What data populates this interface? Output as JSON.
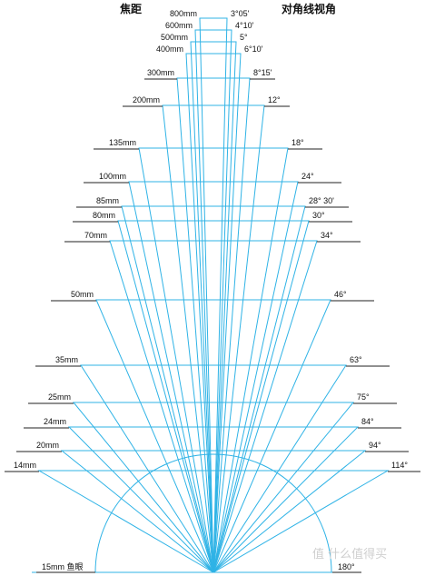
{
  "headers": {
    "focal": "焦距",
    "angle": "对角线视角"
  },
  "colors": {
    "lines": "#2fb3e6",
    "text": "#111111",
    "underline": "#222222",
    "watermark": "#c8c8c8"
  },
  "lenses": [
    {
      "focal": "800mm",
      "angle": "3°05'"
    },
    {
      "focal": "600mm",
      "angle": "4°10'"
    },
    {
      "focal": "500mm",
      "angle": "5°"
    },
    {
      "focal": "400mm",
      "angle": "6°10'"
    },
    {
      "focal": "300mm",
      "angle": "8°15'"
    },
    {
      "focal": "200mm",
      "angle": "12°"
    },
    {
      "focal": "135mm",
      "angle": "18°"
    },
    {
      "focal": "100mm",
      "angle": "24°"
    },
    {
      "focal": "85mm",
      "angle": "28° 30'"
    },
    {
      "focal": "80mm",
      "angle": "30°"
    },
    {
      "focal": "70mm",
      "angle": "34°"
    },
    {
      "focal": "50mm",
      "angle": "46°"
    },
    {
      "focal": "35mm",
      "angle": "63°"
    },
    {
      "focal": "25mm",
      "angle": "75°"
    },
    {
      "focal": "24mm",
      "angle": "84°"
    },
    {
      "focal": "20mm",
      "angle": "94°"
    },
    {
      "focal": "14mm",
      "angle": "114°"
    }
  ],
  "fisheye": {
    "focal": "15mm 鱼眼",
    "angle": "180°"
  },
  "watermark": {
    "text": "值 什么值得买"
  }
}
